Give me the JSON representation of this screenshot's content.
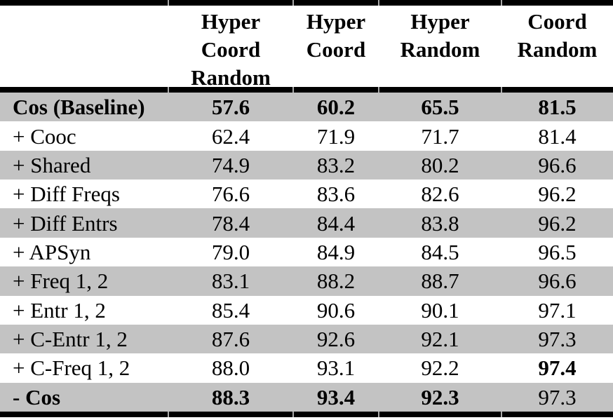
{
  "table": {
    "columns": [
      "",
      "Hyper\nCoord\nRandom",
      "Hyper\nCoord",
      "Hyper\nRandom",
      "Coord\nRandom"
    ],
    "rows": [
      {
        "label": "Cos (Baseline)",
        "label_bold": true,
        "values": [
          "57.6",
          "60.2",
          "65.5",
          "81.5"
        ],
        "bold": [
          true,
          true,
          true,
          true
        ]
      },
      {
        "label": "+ Cooc",
        "label_bold": false,
        "values": [
          "62.4",
          "71.9",
          "71.7",
          "81.4"
        ],
        "bold": [
          false,
          false,
          false,
          false
        ]
      },
      {
        "label": "+ Shared",
        "label_bold": false,
        "values": [
          "74.9",
          "83.2",
          "80.2",
          "96.6"
        ],
        "bold": [
          false,
          false,
          false,
          false
        ]
      },
      {
        "label": "+ Diff Freqs",
        "label_bold": false,
        "values": [
          "76.6",
          "83.6",
          "82.6",
          "96.2"
        ],
        "bold": [
          false,
          false,
          false,
          false
        ]
      },
      {
        "label": "+ Diff Entrs",
        "label_bold": false,
        "values": [
          "78.4",
          "84.4",
          "83.8",
          "96.2"
        ],
        "bold": [
          false,
          false,
          false,
          false
        ]
      },
      {
        "label": "+ APSyn",
        "label_bold": false,
        "values": [
          "79.0",
          "84.9",
          "84.5",
          "96.5"
        ],
        "bold": [
          false,
          false,
          false,
          false
        ]
      },
      {
        "label": "+ Freq 1, 2",
        "label_bold": false,
        "values": [
          "83.1",
          "88.2",
          "88.7",
          "96.6"
        ],
        "bold": [
          false,
          false,
          false,
          false
        ]
      },
      {
        "label": "+ Entr 1, 2",
        "label_bold": false,
        "values": [
          "85.4",
          "90.6",
          "90.1",
          "97.1"
        ],
        "bold": [
          false,
          false,
          false,
          false
        ]
      },
      {
        "label": "+ C-Entr 1, 2",
        "label_bold": false,
        "values": [
          "87.6",
          "92.6",
          "92.1",
          "97.3"
        ],
        "bold": [
          false,
          false,
          false,
          false
        ]
      },
      {
        "label": "+ C-Freq 1, 2",
        "label_bold": false,
        "values": [
          "88.0",
          "93.1",
          "92.2",
          "97.4"
        ],
        "bold": [
          false,
          false,
          false,
          true
        ]
      },
      {
        "label": "- Cos",
        "label_bold": true,
        "values": [
          "88.3",
          "93.4",
          "92.3",
          "97.3"
        ],
        "bold": [
          true,
          true,
          true,
          false
        ]
      }
    ],
    "colors": {
      "row_shade": "#c3c3c3",
      "rule": "#000000",
      "tick": "#a9a9a9",
      "text": "#000000"
    }
  }
}
